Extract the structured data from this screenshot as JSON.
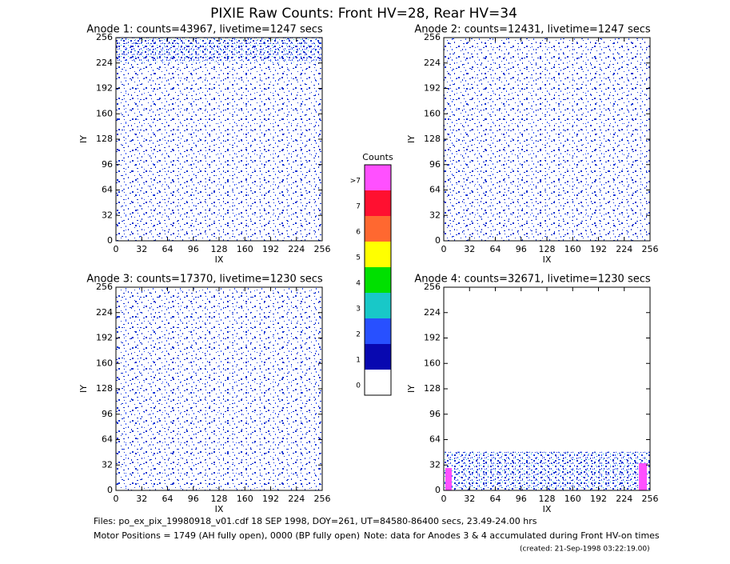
{
  "title": "PIXIE Raw Counts:  Front HV=28, Rear HV=34",
  "footer": [
    "Files: po_ex_pix_19980918_v01.cdf    18 SEP 1998, DOY=261, UT=84580-86400 secs, 23.49-24.00 hrs",
    "Motor Positions = 1749 (AH fully open), 0000 (BP fully open)",
    "Note: data for Anodes 3 & 4 accumulated during Front HV-on times",
    "(created: 21-Sep-1998 03:22:19.00)"
  ],
  "chart_data": [
    {
      "type": "heatmap",
      "title": "Anode 1: counts=43967, livetime=1247 secs",
      "xlabel": "IX",
      "ylabel": "IY",
      "xlim": [
        0,
        256
      ],
      "ylim": [
        0,
        256
      ],
      "xticks": [
        0,
        32,
        64,
        96,
        128,
        160,
        192,
        224,
        256
      ],
      "yticks": [
        0,
        32,
        64,
        96,
        128,
        160,
        192,
        224,
        256
      ]
    },
    {
      "type": "heatmap",
      "title": "Anode 2: counts=12431, livetime=1247 secs",
      "xlabel": "IX",
      "ylabel": "IY",
      "xlim": [
        0,
        256
      ],
      "ylim": [
        0,
        256
      ],
      "xticks": [
        0,
        32,
        64,
        96,
        128,
        160,
        192,
        224,
        256
      ],
      "yticks": [
        0,
        32,
        64,
        96,
        128,
        160,
        192,
        224,
        256
      ]
    },
    {
      "type": "heatmap",
      "title": "Anode 3: counts=17370, livetime=1230 secs",
      "xlabel": "IX",
      "ylabel": "IY",
      "xlim": [
        0,
        256
      ],
      "ylim": [
        0,
        256
      ],
      "xticks": [
        0,
        32,
        64,
        96,
        128,
        160,
        192,
        224,
        256
      ],
      "yticks": [
        0,
        32,
        64,
        96,
        128,
        160,
        192,
        224,
        256
      ]
    },
    {
      "type": "heatmap",
      "title": "Anode 4: counts=32671, livetime=1230 secs",
      "xlabel": "IX",
      "ylabel": "IY",
      "xlim": [
        0,
        256
      ],
      "ylim": [
        0,
        256
      ],
      "xticks": [
        0,
        32,
        64,
        96,
        128,
        160,
        192,
        224,
        256
      ],
      "yticks": [
        0,
        32,
        64,
        96,
        128,
        160,
        192,
        224,
        256
      ]
    },
    {
      "type": "colorbar",
      "title": "Counts",
      "labels": [
        0,
        1,
        2,
        3,
        4,
        5,
        6,
        7,
        ">7"
      ],
      "colors": [
        "#ffffff",
        "#0808b0",
        "#2850ff",
        "#18c8c8",
        "#00e000",
        "#ffff00",
        "#ff6830",
        "#ff1030",
        "#ff50ff"
      ]
    }
  ]
}
